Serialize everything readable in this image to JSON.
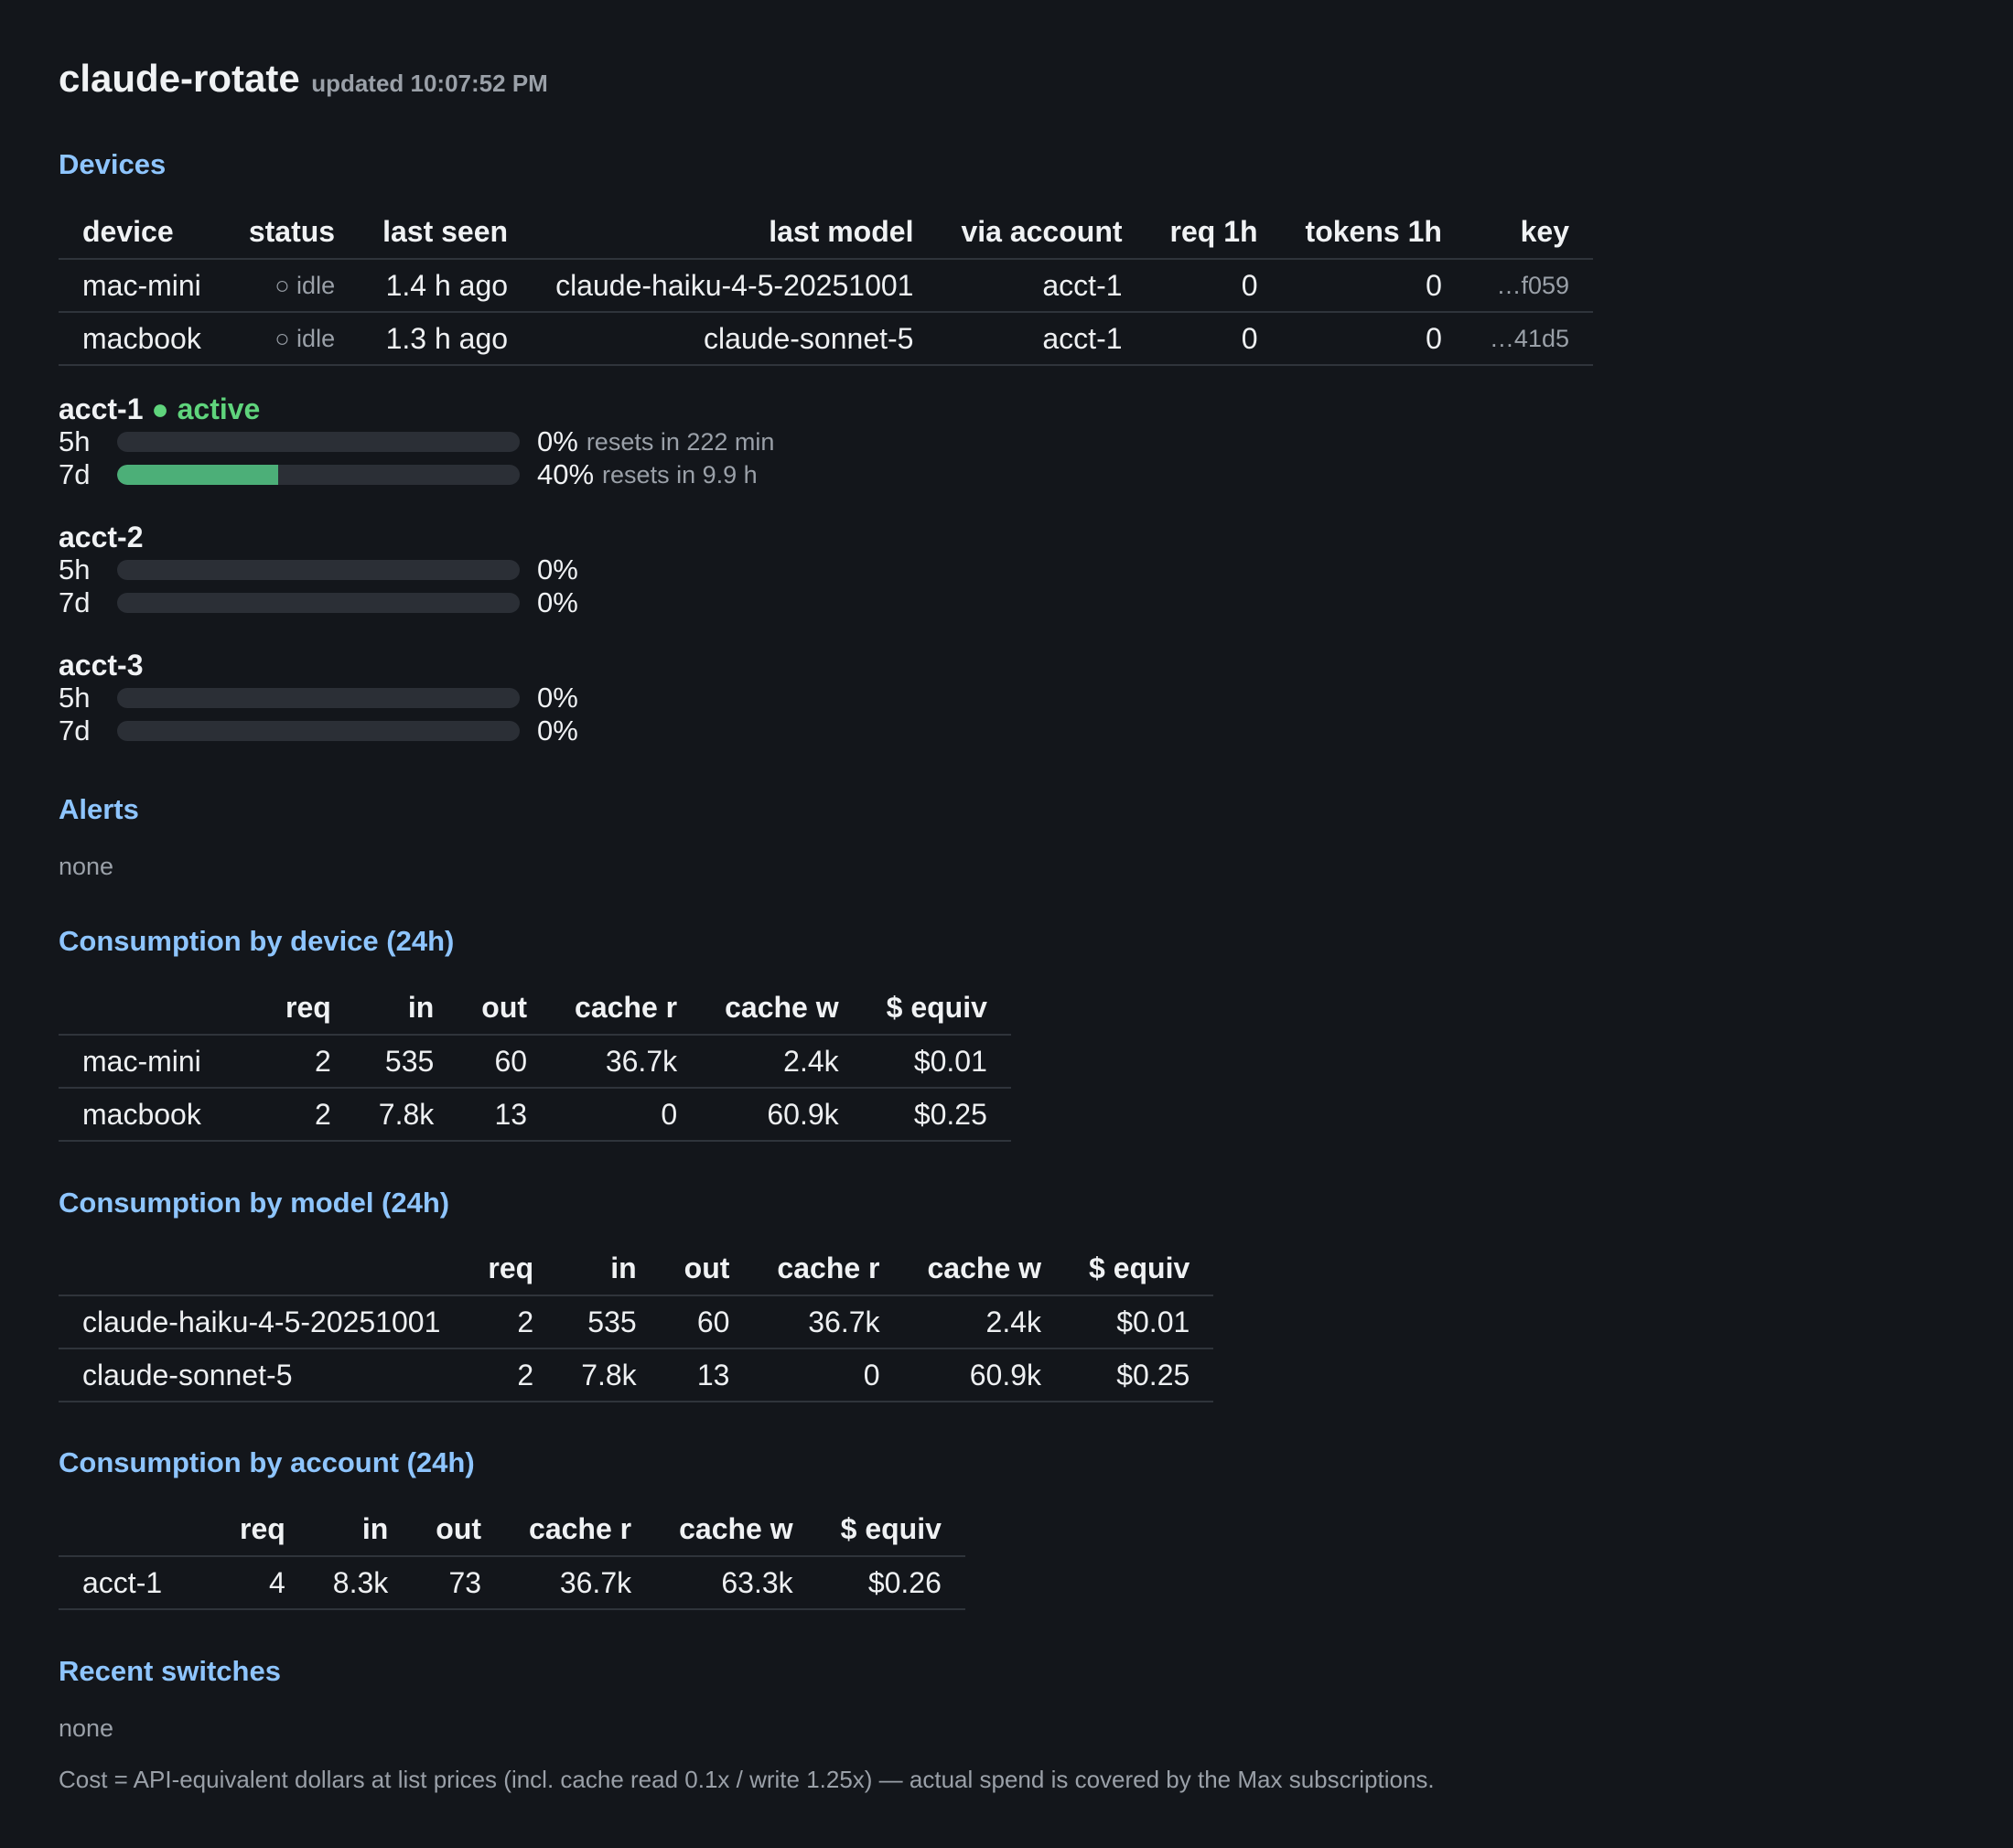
{
  "header": {
    "title": "claude-rotate",
    "updated": "updated 10:07:52 PM"
  },
  "devices": {
    "heading": "Devices",
    "columns": [
      "device",
      "status",
      "last seen",
      "last model",
      "via account",
      "req 1h",
      "tokens 1h",
      "key"
    ],
    "rows": [
      {
        "device": "mac-mini",
        "status": "○ idle",
        "last_seen": "1.4 h ago",
        "last_model": "claude-haiku-4-5-20251001",
        "via_account": "acct-1",
        "req_1h": "0",
        "tokens_1h": "0",
        "key": "…f059"
      },
      {
        "device": "macbook",
        "status": "○ idle",
        "last_seen": "1.3 h ago",
        "last_model": "claude-sonnet-5",
        "via_account": "acct-1",
        "req_1h": "0",
        "tokens_1h": "0",
        "key": "…41d5"
      }
    ]
  },
  "accounts": [
    {
      "name": "acct-1",
      "status": "● active",
      "status_color": "#5fd47c",
      "meters": [
        {
          "label": "5h",
          "pct": "0%",
          "fraction": 0.0,
          "resets": "resets in 222 min"
        },
        {
          "label": "7d",
          "pct": "40%",
          "fraction": 0.4,
          "resets": "resets in 9.9 h"
        }
      ]
    },
    {
      "name": "acct-2",
      "status": "",
      "meters": [
        {
          "label": "5h",
          "pct": "0%",
          "fraction": 0.0,
          "resets": ""
        },
        {
          "label": "7d",
          "pct": "0%",
          "fraction": 0.0,
          "resets": ""
        }
      ]
    },
    {
      "name": "acct-3",
      "status": "",
      "meters": [
        {
          "label": "5h",
          "pct": "0%",
          "fraction": 0.0,
          "resets": ""
        },
        {
          "label": "7d",
          "pct": "0%",
          "fraction": 0.0,
          "resets": ""
        }
      ]
    }
  ],
  "alerts": {
    "heading": "Alerts",
    "value": "none"
  },
  "consumption_device": {
    "heading": "Consumption by device (24h)",
    "columns": [
      "",
      "req",
      "in",
      "out",
      "cache r",
      "cache w",
      "$ equiv"
    ],
    "rows": [
      [
        "mac-mini",
        "2",
        "535",
        "60",
        "36.7k",
        "2.4k",
        "$0.01"
      ],
      [
        "macbook",
        "2",
        "7.8k",
        "13",
        "0",
        "60.9k",
        "$0.25"
      ]
    ]
  },
  "consumption_model": {
    "heading": "Consumption by model (24h)",
    "columns": [
      "",
      "req",
      "in",
      "out",
      "cache r",
      "cache w",
      "$ equiv"
    ],
    "rows": [
      [
        "claude-haiku-4-5-20251001",
        "2",
        "535",
        "60",
        "36.7k",
        "2.4k",
        "$0.01"
      ],
      [
        "claude-sonnet-5",
        "2",
        "7.8k",
        "13",
        "0",
        "60.9k",
        "$0.25"
      ]
    ]
  },
  "consumption_account": {
    "heading": "Consumption by account (24h)",
    "columns": [
      "",
      "req",
      "in",
      "out",
      "cache r",
      "cache w",
      "$ equiv"
    ],
    "rows": [
      [
        "acct-1",
        "4",
        "8.3k",
        "73",
        "36.7k",
        "63.3k",
        "$0.26"
      ]
    ]
  },
  "recent_switches": {
    "heading": "Recent switches",
    "value": "none"
  },
  "footer": "Cost = API-equivalent dollars at list prices (incl. cache read 0.1x / write 1.25x) — actual spend is covered by the Max subscriptions.",
  "colors": {
    "background": "#13161b",
    "heading": "#8ec5ff",
    "active": "#5fd47c",
    "bar_fill": "#4caf78",
    "bar_track": "#2b2f36"
  }
}
